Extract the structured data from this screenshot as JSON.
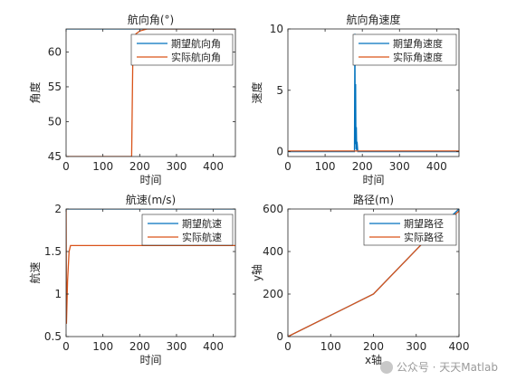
{
  "colors": {
    "desired": "#0072BD",
    "actual": "#D95319",
    "axis": "#262626",
    "figure_bg": "#ffffff"
  },
  "watermark": {
    "text": "公众号 · 天天Matlab",
    "icon": "wechat-logo-icon"
  },
  "chart_data": [
    {
      "id": "heading",
      "type": "line",
      "title": "航向角(°)",
      "xlabel": "",
      "ylabel": "角度",
      "xlim": [
        0,
        460
      ],
      "ylim": [
        45,
        63.3
      ],
      "xticks": [
        0,
        100,
        200,
        300,
        400
      ],
      "yticks": [
        45,
        50,
        55,
        60
      ],
      "legend": "top-right",
      "series": [
        {
          "name": "期望航向角",
          "color_key": "desired",
          "points": [
            [
              0,
              63.3
            ],
            [
              460,
              63.3
            ]
          ]
        },
        {
          "name": "实际航向角",
          "color_key": "actual",
          "points": [
            [
              0,
              45
            ],
            [
              178,
              45
            ],
            [
              181,
              58
            ],
            [
              184,
              61.5
            ],
            [
              190,
              62.6
            ],
            [
              200,
              63.0
            ],
            [
              220,
              63.3
            ],
            [
              460,
              63.3
            ]
          ]
        }
      ]
    },
    {
      "id": "heading-rate",
      "type": "line",
      "title": "航向角速度",
      "xlabel": "",
      "ylabel": "速度",
      "xlim": [
        0,
        460
      ],
      "ylim": [
        -0.4,
        10
      ],
      "xticks": [
        0,
        100,
        200,
        300,
        400
      ],
      "yticks": [
        0,
        5,
        10
      ],
      "legend": "top-right",
      "series": [
        {
          "name": "期望角速度",
          "color_key": "desired",
          "points": [
            [
              0,
              0
            ],
            [
              179,
              0
            ],
            [
              180,
              9.6
            ],
            [
              181,
              0.6
            ],
            [
              182,
              5.5
            ],
            [
              183,
              0.2
            ],
            [
              184,
              2.0
            ],
            [
              185,
              0.1
            ],
            [
              186,
              0.8
            ],
            [
              188,
              0
            ],
            [
              460,
              0
            ]
          ]
        },
        {
          "name": "实际角速度",
          "color_key": "actual",
          "points": [
            [
              0,
              0.05
            ],
            [
              460,
              0.05
            ]
          ]
        }
      ]
    },
    {
      "id": "speed",
      "type": "line",
      "title": "航速(m/s)",
      "xlabel": "时间",
      "ylabel": "航速",
      "xlim": [
        0,
        460
      ],
      "ylim": [
        0.5,
        2
      ],
      "xticks": [
        0,
        100,
        200,
        300,
        400
      ],
      "yticks": [
        0.5,
        1,
        1.5,
        2
      ],
      "legend": "top-right",
      "series": [
        {
          "name": "期望航速",
          "color_key": "desired",
          "points": [
            [
              0,
              2
            ],
            [
              460,
              2
            ]
          ]
        },
        {
          "name": "实际航速",
          "color_key": "actual",
          "points": [
            [
              0,
              2
            ],
            [
              1,
              0.65
            ],
            [
              4,
              1.15
            ],
            [
              8,
              1.5
            ],
            [
              12,
              1.57
            ],
            [
              460,
              1.57
            ]
          ]
        }
      ]
    },
    {
      "id": "path",
      "type": "line",
      "title": "路径(m)",
      "xlabel": "x轴",
      "ylabel": "y轴",
      "xlim": [
        0,
        400
      ],
      "ylim": [
        0,
        600
      ],
      "xticks": [
        0,
        100,
        200,
        300,
        400
      ],
      "yticks": [
        0,
        200,
        400,
        600
      ],
      "legend": "top-right",
      "series": [
        {
          "name": "期望路径",
          "color_key": "desired",
          "points": [
            [
              0,
              0
            ],
            [
              200,
              200
            ],
            [
              320,
              450
            ],
            [
              400,
              600
            ]
          ]
        },
        {
          "name": "实际路径",
          "color_key": "actual",
          "points": [
            [
              0,
              0
            ],
            [
              200,
              200
            ],
            [
              320,
              450
            ],
            [
              400,
              590
            ]
          ]
        }
      ]
    }
  ],
  "axis_labels_under_top_row": [
    "时间",
    "时间"
  ]
}
